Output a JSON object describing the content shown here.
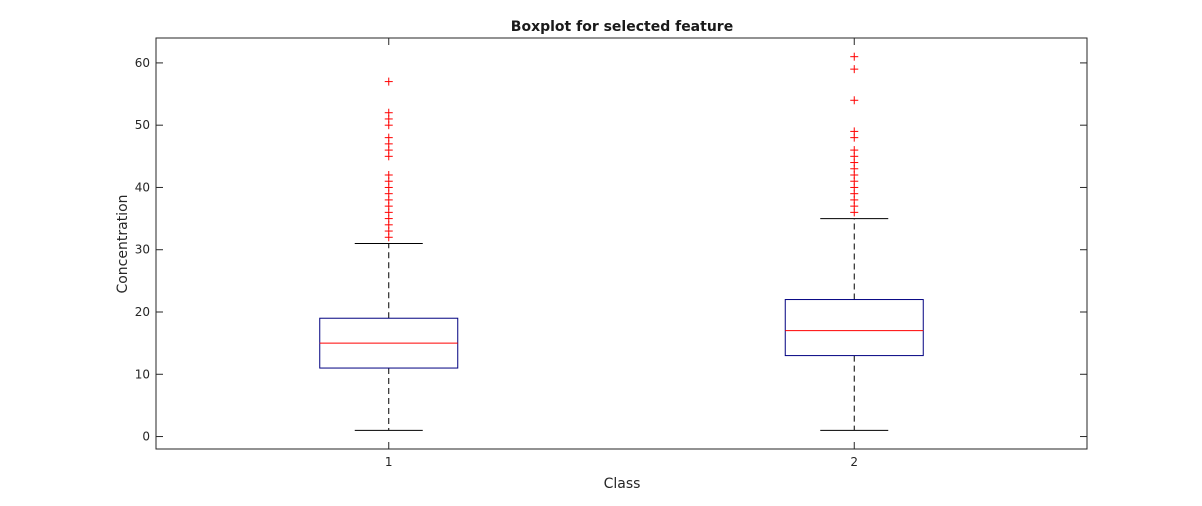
{
  "chart_data": {
    "type": "boxplot",
    "title": "Boxplot for selected feature",
    "xlabel": "Class",
    "ylabel": "Concentration",
    "ylim": [
      -2,
      64
    ],
    "yticks": [
      0,
      10,
      20,
      30,
      40,
      50,
      60
    ],
    "grid": false,
    "categories": [
      "1",
      "2"
    ],
    "boxes": [
      {
        "category": "1",
        "whisker_low": 1,
        "q1": 11,
        "median": 15,
        "q3": 19,
        "whisker_high": 31,
        "outliers": [
          32,
          33,
          34,
          35,
          36,
          37,
          38,
          39,
          40,
          41,
          42,
          45,
          46,
          47,
          48,
          50,
          51,
          52,
          57
        ]
      },
      {
        "category": "2",
        "whisker_low": 1,
        "q1": 13,
        "median": 17,
        "q3": 22,
        "whisker_high": 35,
        "outliers": [
          36,
          37,
          38,
          39,
          40,
          41,
          42,
          43,
          44,
          45,
          46,
          48,
          49,
          54,
          59,
          61
        ]
      }
    ],
    "colors": {
      "box": "#000080",
      "median": "#ff0000",
      "whisker": "#000000",
      "outlier": "#ff0000",
      "axes": "#262626"
    }
  }
}
